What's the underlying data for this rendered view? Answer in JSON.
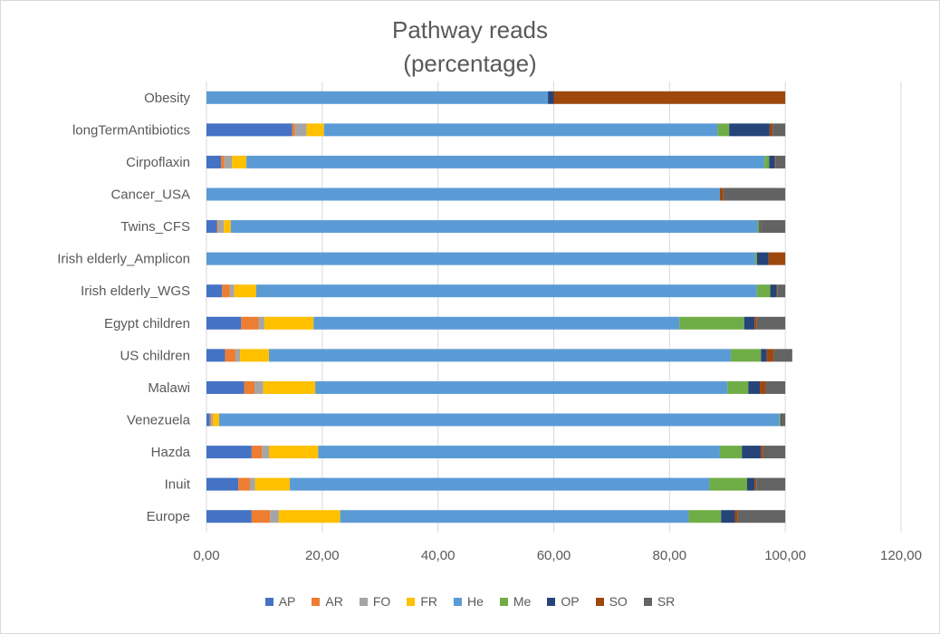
{
  "chart_data": {
    "type": "bar",
    "orientation": "horizontal",
    "stacked": true,
    "title": [
      "Pathway reads",
      "(percentage)"
    ],
    "xlim": [
      0,
      120
    ],
    "xticks": [
      "0,00",
      "20,00",
      "40,00",
      "60,00",
      "80,00",
      "100,00",
      "120,00"
    ],
    "xtick_values": [
      0,
      20,
      40,
      60,
      80,
      100,
      120
    ],
    "grid": true,
    "legend_position": "bottom",
    "categories": [
      "Obesity",
      "longTermAntibiotics",
      "Cirpoflaxin",
      "Cancer_USA",
      "Twins_CFS",
      "Irish elderly_Amplicon",
      "Irish elderly_WGS",
      "Egypt children",
      "US children",
      "Malawi",
      "Venezuela",
      "Hazda",
      "Inuit",
      "Europe"
    ],
    "series": [
      {
        "name": "AP",
        "color": "#4472C4",
        "values": [
          0,
          14.8,
          2.5,
          0,
          1.8,
          0,
          2.7,
          6.0,
          3.2,
          6.5,
          0.6,
          7.8,
          5.5,
          7.8
        ]
      },
      {
        "name": "AR",
        "color": "#ED7D31",
        "values": [
          0,
          0.5,
          0.6,
          0,
          0.2,
          0,
          1.3,
          3.0,
          1.8,
          1.8,
          0.2,
          1.8,
          2.0,
          3.2
        ]
      },
      {
        "name": "FO",
        "color": "#A5A5A5",
        "values": [
          0,
          2.0,
          1.3,
          0,
          1.0,
          0,
          0.8,
          1.0,
          0.8,
          1.5,
          0.3,
          1.2,
          0.9,
          1.5
        ]
      },
      {
        "name": "FR",
        "color": "#FFC000",
        "values": [
          0,
          3.0,
          2.5,
          0,
          1.2,
          0,
          3.8,
          8.5,
          5.0,
          9.0,
          1.1,
          8.5,
          6.0,
          10.6
        ]
      },
      {
        "name": "He",
        "color": "#5B9BD5",
        "values": [
          59.0,
          68.0,
          89.5,
          88.7,
          91.0,
          94.8,
          86.5,
          63.2,
          79.8,
          71.2,
          96.8,
          69.4,
          72.5,
          60.2
        ]
      },
      {
        "name": "Me",
        "color": "#70AD47",
        "values": [
          0,
          2.0,
          0.8,
          0,
          0.3,
          0.3,
          2.3,
          11.2,
          5.2,
          3.6,
          0.2,
          3.8,
          6.5,
          5.6
        ]
      },
      {
        "name": "OP",
        "color": "#264478",
        "values": [
          1.0,
          7.0,
          1.0,
          0,
          0.2,
          2.0,
          1.1,
          1.8,
          1.0,
          2.0,
          0.2,
          3.3,
          1.3,
          2.4
        ]
      },
      {
        "name": "SO",
        "color": "#9E480E",
        "values": [
          40.0,
          0.5,
          0.1,
          0.6,
          0.1,
          2.9,
          0.1,
          0.4,
          1.2,
          1.0,
          0.1,
          0.4,
          0.3,
          0.5
        ]
      },
      {
        "name": "SR",
        "color": "#636363",
        "values": [
          0,
          2.2,
          1.7,
          10.7,
          4.2,
          0,
          1.4,
          4.9,
          3.2,
          3.4,
          0.5,
          3.8,
          5.0,
          8.2
        ]
      }
    ]
  }
}
